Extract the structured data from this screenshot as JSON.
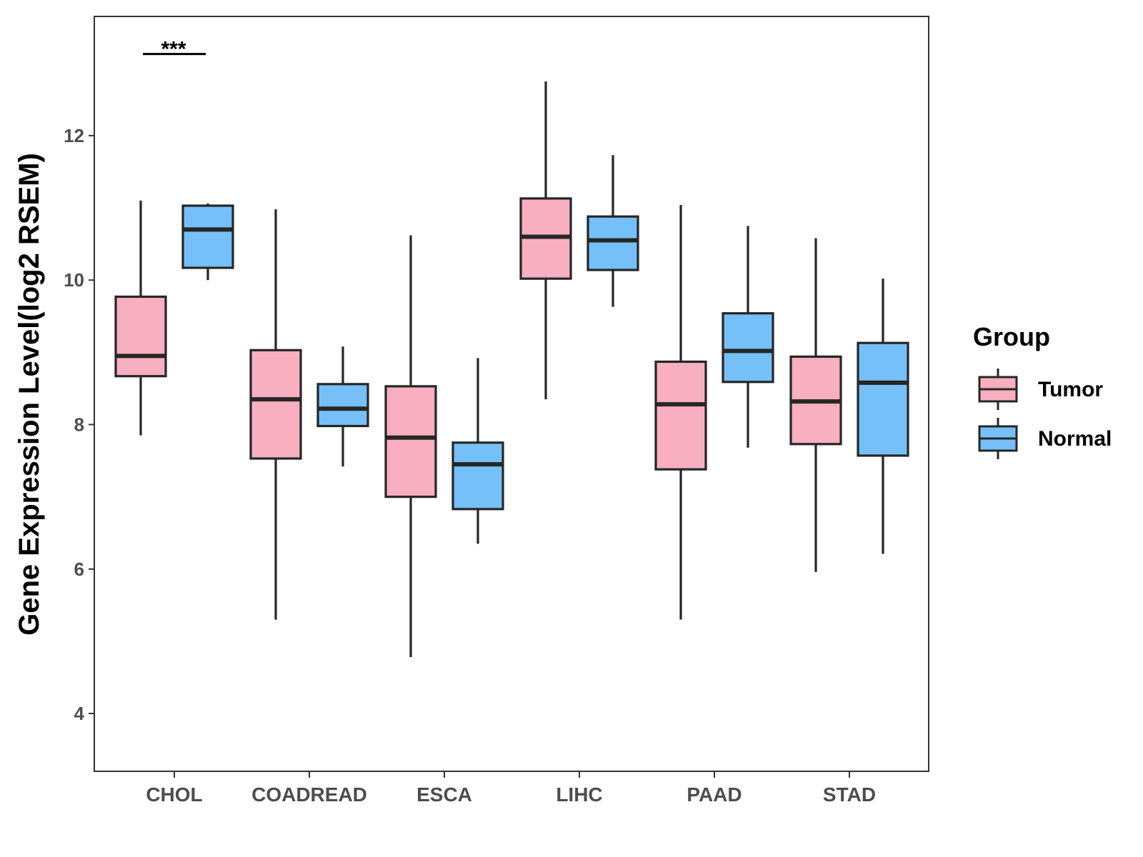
{
  "chart_data": {
    "type": "box",
    "title": "",
    "xlabel": "",
    "ylabel": "Gene Expression Level(log2 RSEM)",
    "ylim": [
      3.2,
      13.65
    ],
    "yticks": [
      4,
      6,
      8,
      10,
      12
    ],
    "ytick_labels": [
      "4",
      "6",
      "8",
      "10",
      "12"
    ],
    "categories": [
      "CHOL",
      "COADREAD",
      "ESCA",
      "LIHC",
      "PAAD",
      "STAD"
    ],
    "legend": {
      "title": "Group",
      "position": "right"
    },
    "series": [
      {
        "name": "Tumor",
        "color": "#F8AFC0",
        "boxes": [
          {
            "min": 7.85,
            "q1": 8.67,
            "median": 8.95,
            "q3": 9.77,
            "max": 11.1
          },
          {
            "min": 5.3,
            "q1": 7.53,
            "median": 8.35,
            "q3": 9.03,
            "max": 10.98
          },
          {
            "min": 4.78,
            "q1": 7.0,
            "median": 7.82,
            "q3": 8.53,
            "max": 10.62
          },
          {
            "min": 8.35,
            "q1": 10.02,
            "median": 10.6,
            "q3": 11.13,
            "max": 12.75
          },
          {
            "min": 5.3,
            "q1": 7.38,
            "median": 8.28,
            "q3": 8.87,
            "max": 11.04
          },
          {
            "min": 5.96,
            "q1": 7.73,
            "median": 8.32,
            "q3": 8.94,
            "max": 10.58
          }
        ]
      },
      {
        "name": "Normal",
        "color": "#75C0F8",
        "boxes": [
          {
            "min": 10.0,
            "q1": 10.17,
            "median": 10.7,
            "q3": 11.03,
            "max": 11.06
          },
          {
            "min": 7.42,
            "q1": 7.98,
            "median": 8.22,
            "q3": 8.56,
            "max": 9.08
          },
          {
            "min": 6.35,
            "q1": 6.83,
            "median": 7.45,
            "q3": 7.75,
            "max": 8.92
          },
          {
            "min": 9.63,
            "q1": 10.14,
            "median": 10.55,
            "q3": 10.88,
            "max": 11.73
          },
          {
            "min": 7.68,
            "q1": 8.59,
            "median": 9.02,
            "q3": 9.54,
            "max": 10.75
          },
          {
            "min": 6.21,
            "q1": 7.57,
            "median": 8.58,
            "q3": 9.13,
            "max": 10.02
          }
        ]
      }
    ],
    "annotations": [
      {
        "category": "CHOL",
        "text": "***",
        "y": 13.13
      }
    ],
    "colors": {
      "outline": "#262626",
      "axis": "#333333",
      "tick_text": "#4d4d4d"
    }
  }
}
